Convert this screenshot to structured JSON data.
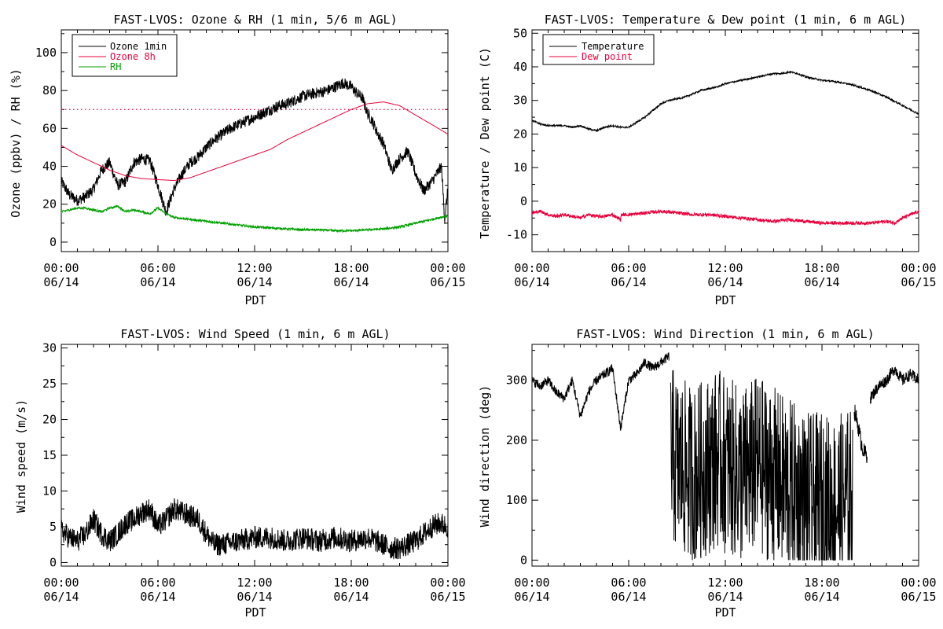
{
  "colors": {
    "background": "#ffffff",
    "axes": "#000000",
    "ozone_1min": "#000000",
    "ozone_8h": "#e8003c",
    "rh": "#00a000",
    "temperature": "#000000",
    "dew_point": "#e8003c",
    "threshold": "#e8003c"
  },
  "chart_data": [
    {
      "type": "line",
      "title": "FAST-LVOS: Ozone & RH (1 min, 5/6 m AGL)",
      "xlabel": "PDT",
      "ylabel": "Ozone (ppbv) / RH (%)",
      "x_unit": "hours since 06/14 00:00 PDT",
      "xlim": [
        0,
        24
      ],
      "ylim": [
        -5,
        112
      ],
      "x_ticks": [
        {
          "t": 0,
          "time": "00:00",
          "date": "06/14"
        },
        {
          "t": 6,
          "time": "06:00",
          "date": "06/14"
        },
        {
          "t": 12,
          "time": "12:00",
          "date": "06/14"
        },
        {
          "t": 18,
          "time": "18:00",
          "date": "06/14"
        },
        {
          "t": 24,
          "time": "00:00",
          "date": "06/15"
        }
      ],
      "y_ticks": [
        0,
        20,
        40,
        60,
        80,
        100
      ],
      "legend_position": "top-left",
      "reference_line": {
        "y": 70,
        "style": "dotted",
        "color": "#e8003c"
      },
      "series": [
        {
          "name": "Ozone 1min",
          "color": "#000000",
          "noise": 3,
          "x": [
            0,
            0.5,
            1,
            1.5,
            2,
            2.5,
            3,
            3.5,
            4,
            4.5,
            5,
            5.5,
            6,
            6.5,
            7,
            7.5,
            8,
            8.5,
            9,
            9.5,
            10,
            10.5,
            11,
            11.5,
            12,
            12.5,
            13,
            13.5,
            14,
            14.5,
            15,
            15.5,
            16,
            16.5,
            17,
            17.5,
            18,
            18.3,
            18.7,
            19,
            19.3,
            19.6,
            20,
            20.5,
            21,
            21.5,
            22,
            22.5,
            23,
            23.3,
            23.6,
            23.8,
            24
          ],
          "y": [
            32,
            25,
            22,
            24,
            28,
            38,
            42,
            30,
            32,
            42,
            44,
            43,
            30,
            16,
            28,
            36,
            42,
            45,
            50,
            54,
            57,
            60,
            62,
            64,
            66,
            68,
            70,
            72,
            73,
            75,
            77,
            78,
            79,
            80,
            82,
            84,
            82,
            79,
            76,
            68,
            64,
            58,
            52,
            38,
            44,
            48,
            36,
            27,
            32,
            36,
            40,
            12,
            28
          ]
        },
        {
          "name": "Ozone 8h",
          "color": "#e8003c",
          "noise": 0,
          "x": [
            0,
            1,
            2,
            3,
            4,
            5,
            6,
            7,
            8,
            9,
            10,
            11,
            12,
            13,
            14,
            15,
            16,
            17,
            18,
            19,
            20,
            21,
            22,
            23,
            24
          ],
          "y": [
            51,
            46,
            42,
            38,
            35,
            33.5,
            33,
            32.5,
            34,
            37,
            40,
            43,
            46,
            49,
            54,
            58,
            62,
            66,
            70,
            73,
            74,
            72,
            67,
            62,
            57
          ]
        },
        {
          "name": "RH",
          "color": "#00a000",
          "noise": 0.6,
          "x": [
            0,
            0.5,
            1,
            1.5,
            2,
            2.5,
            3,
            3.5,
            4,
            4.5,
            5,
            5.5,
            6,
            6.5,
            7,
            8,
            9,
            10,
            11,
            12,
            13,
            14,
            15,
            16,
            17,
            18,
            19,
            20,
            21,
            22,
            23,
            24
          ],
          "y": [
            16,
            17,
            18,
            18,
            17,
            16,
            18,
            19,
            16,
            17,
            16,
            15,
            18,
            15,
            13,
            12,
            11,
            10,
            9,
            8,
            7.5,
            7,
            6.5,
            6.5,
            6,
            6,
            6.5,
            7,
            8,
            10,
            12,
            14
          ]
        }
      ]
    },
    {
      "type": "line",
      "title": "FAST-LVOS: Temperature & Dew point (1 min, 6 m AGL)",
      "xlabel": "PDT",
      "ylabel": "Temperature / Dew point (C)",
      "x_unit": "hours since 06/14 00:00 PDT",
      "xlim": [
        0,
        24
      ],
      "ylim": [
        -15,
        51
      ],
      "x_ticks": [
        {
          "t": 0,
          "time": "00:00",
          "date": "06/14"
        },
        {
          "t": 6,
          "time": "06:00",
          "date": "06/14"
        },
        {
          "t": 12,
          "time": "12:00",
          "date": "06/14"
        },
        {
          "t": 18,
          "time": "18:00",
          "date": "06/14"
        },
        {
          "t": 24,
          "time": "00:00",
          "date": "06/15"
        }
      ],
      "y_ticks": [
        -10,
        0,
        10,
        20,
        30,
        40,
        50
      ],
      "legend_position": "top-left",
      "series": [
        {
          "name": "Temperature",
          "color": "#000000",
          "noise": 0.25,
          "x": [
            0,
            0.5,
            1,
            1.5,
            2,
            2.5,
            3,
            3.5,
            4,
            4.5,
            5,
            5.5,
            6,
            6.5,
            7,
            7.5,
            8,
            8.5,
            9,
            9.5,
            10,
            10.5,
            11,
            11.5,
            12,
            12.5,
            13,
            13.5,
            14,
            14.5,
            15,
            15.5,
            16,
            16.5,
            17,
            17.5,
            18,
            19,
            20,
            21,
            22,
            23,
            24
          ],
          "y": [
            24,
            23,
            22.5,
            22.5,
            22.5,
            22,
            22.5,
            21.5,
            21,
            22,
            22.5,
            22,
            22,
            23.5,
            25,
            27,
            29,
            30,
            30.5,
            31,
            32,
            33,
            33.5,
            34,
            35,
            35.5,
            36,
            36.5,
            37,
            37.5,
            38,
            38,
            38.5,
            38,
            37,
            36.5,
            36,
            35.5,
            34.5,
            33,
            31,
            28.5,
            26
          ]
        },
        {
          "name": "Dew point",
          "color": "#e8003c",
          "noise": 0.5,
          "x": [
            0,
            0.5,
            1,
            1.5,
            2,
            2.5,
            3,
            3.5,
            4,
            4.5,
            5,
            5.5,
            5.55,
            6,
            7,
            8,
            9,
            10,
            11,
            12,
            13,
            14,
            15,
            16,
            17,
            18,
            19,
            20,
            21,
            22,
            22.5,
            23,
            23.5,
            24
          ],
          "y": [
            -3.5,
            -3,
            -4,
            -4.5,
            -4,
            -4.5,
            -5,
            -4,
            -4.5,
            -4.5,
            -4,
            -5.5,
            -4,
            -4,
            -3.5,
            -3,
            -3.5,
            -4,
            -4,
            -4.5,
            -5,
            -5.5,
            -6,
            -5.5,
            -6,
            -6.5,
            -6.5,
            -6.5,
            -6.5,
            -6,
            -6.5,
            -5,
            -4,
            -3
          ]
        }
      ]
    },
    {
      "type": "line",
      "title": "FAST-LVOS: Wind Speed (1 min, 6 m AGL)",
      "xlabel": "PDT",
      "ylabel": "Wind speed (m/s)",
      "x_unit": "hours since 06/14 00:00 PDT",
      "xlim": [
        0,
        24
      ],
      "ylim": [
        -0.5,
        30.5
      ],
      "x_ticks": [
        {
          "t": 0,
          "time": "00:00",
          "date": "06/14"
        },
        {
          "t": 6,
          "time": "06:00",
          "date": "06/14"
        },
        {
          "t": 12,
          "time": "12:00",
          "date": "06/14"
        },
        {
          "t": 18,
          "time": "18:00",
          "date": "06/14"
        },
        {
          "t": 24,
          "time": "00:00",
          "date": "06/15"
        }
      ],
      "y_ticks": [
        0,
        5,
        10,
        15,
        20,
        25,
        30
      ],
      "series": [
        {
          "color": "#000000",
          "noise": 1.6,
          "x": [
            0,
            0.5,
            1,
            1.5,
            2,
            2.5,
            3,
            3.5,
            4,
            4.5,
            5,
            5.5,
            6,
            6.5,
            7,
            7.5,
            8,
            8.5,
            9,
            9.5,
            10,
            11,
            12,
            13,
            14,
            15,
            16,
            17,
            18,
            19,
            20,
            20.5,
            21,
            22,
            23,
            23.5,
            24
          ],
          "y": [
            4.5,
            3.5,
            3,
            4,
            6,
            4,
            3,
            4,
            5.5,
            6,
            7,
            7.5,
            5,
            6,
            7.5,
            7,
            6.5,
            6,
            4,
            2.5,
            2.5,
            3,
            3.5,
            3.5,
            3,
            3.5,
            3,
            3.5,
            3,
            3.5,
            2.5,
            2,
            2,
            3,
            5,
            5.5,
            5
          ]
        }
      ]
    },
    {
      "type": "scatter",
      "title": "FAST-LVOS: Wind Direction (1 min, 6 m AGL)",
      "xlabel": "PDT",
      "ylabel": "Wind direction (deg)",
      "x_unit": "hours since 06/14 00:00 PDT",
      "xlim": [
        0,
        24
      ],
      "ylim": [
        -10,
        360
      ],
      "x_ticks": [
        {
          "t": 0,
          "time": "00:00",
          "date": "06/14"
        },
        {
          "t": 6,
          "time": "06:00",
          "date": "06/14"
        },
        {
          "t": 12,
          "time": "12:00",
          "date": "06/14"
        },
        {
          "t": 18,
          "time": "18:00",
          "date": "06/14"
        },
        {
          "t": 24,
          "time": "00:00",
          "date": "06/15"
        }
      ],
      "y_ticks": [
        0,
        100,
        200,
        300
      ],
      "series": [
        {
          "color": "#000000",
          "noise": 8,
          "x": [
            0,
            0.5,
            1,
            1.5,
            2,
            2.5,
            3,
            3.5,
            4,
            4.5,
            5,
            5.5,
            6,
            6.5,
            7,
            7.5,
            8,
            8.5
          ],
          "y": [
            300,
            290,
            300,
            280,
            270,
            300,
            240,
            280,
            300,
            310,
            320,
            220,
            300,
            310,
            330,
            320,
            330,
            340
          ]
        },
        {
          "color": "#000000",
          "noise": 150,
          "clip": [
            0,
            355
          ],
          "x": [
            8.6,
            9,
            9.5,
            10,
            10.5,
            11,
            11.5,
            12,
            12.5,
            13,
            13.5,
            14,
            14.5,
            15,
            15.5,
            16,
            16.5,
            17,
            17.5,
            18,
            18.5,
            19,
            19.5,
            19.9
          ],
          "y": [
            180,
            160,
            150,
            140,
            150,
            160,
            170,
            160,
            150,
            140,
            150,
            160,
            150,
            140,
            130,
            120,
            110,
            100,
            95,
            100,
            90,
            95,
            100,
            110
          ]
        },
        {
          "color": "#000000",
          "noise": 15,
          "x": [
            20,
            20.2,
            20.4,
            20.6,
            20.8
          ],
          "y": [
            250,
            230,
            200,
            180,
            175
          ]
        },
        {
          "color": "#000000",
          "noise": 10,
          "x": [
            21,
            21.5,
            22,
            22.5,
            23,
            23.5,
            24
          ],
          "y": [
            270,
            290,
            300,
            320,
            300,
            310,
            300
          ]
        }
      ]
    }
  ]
}
